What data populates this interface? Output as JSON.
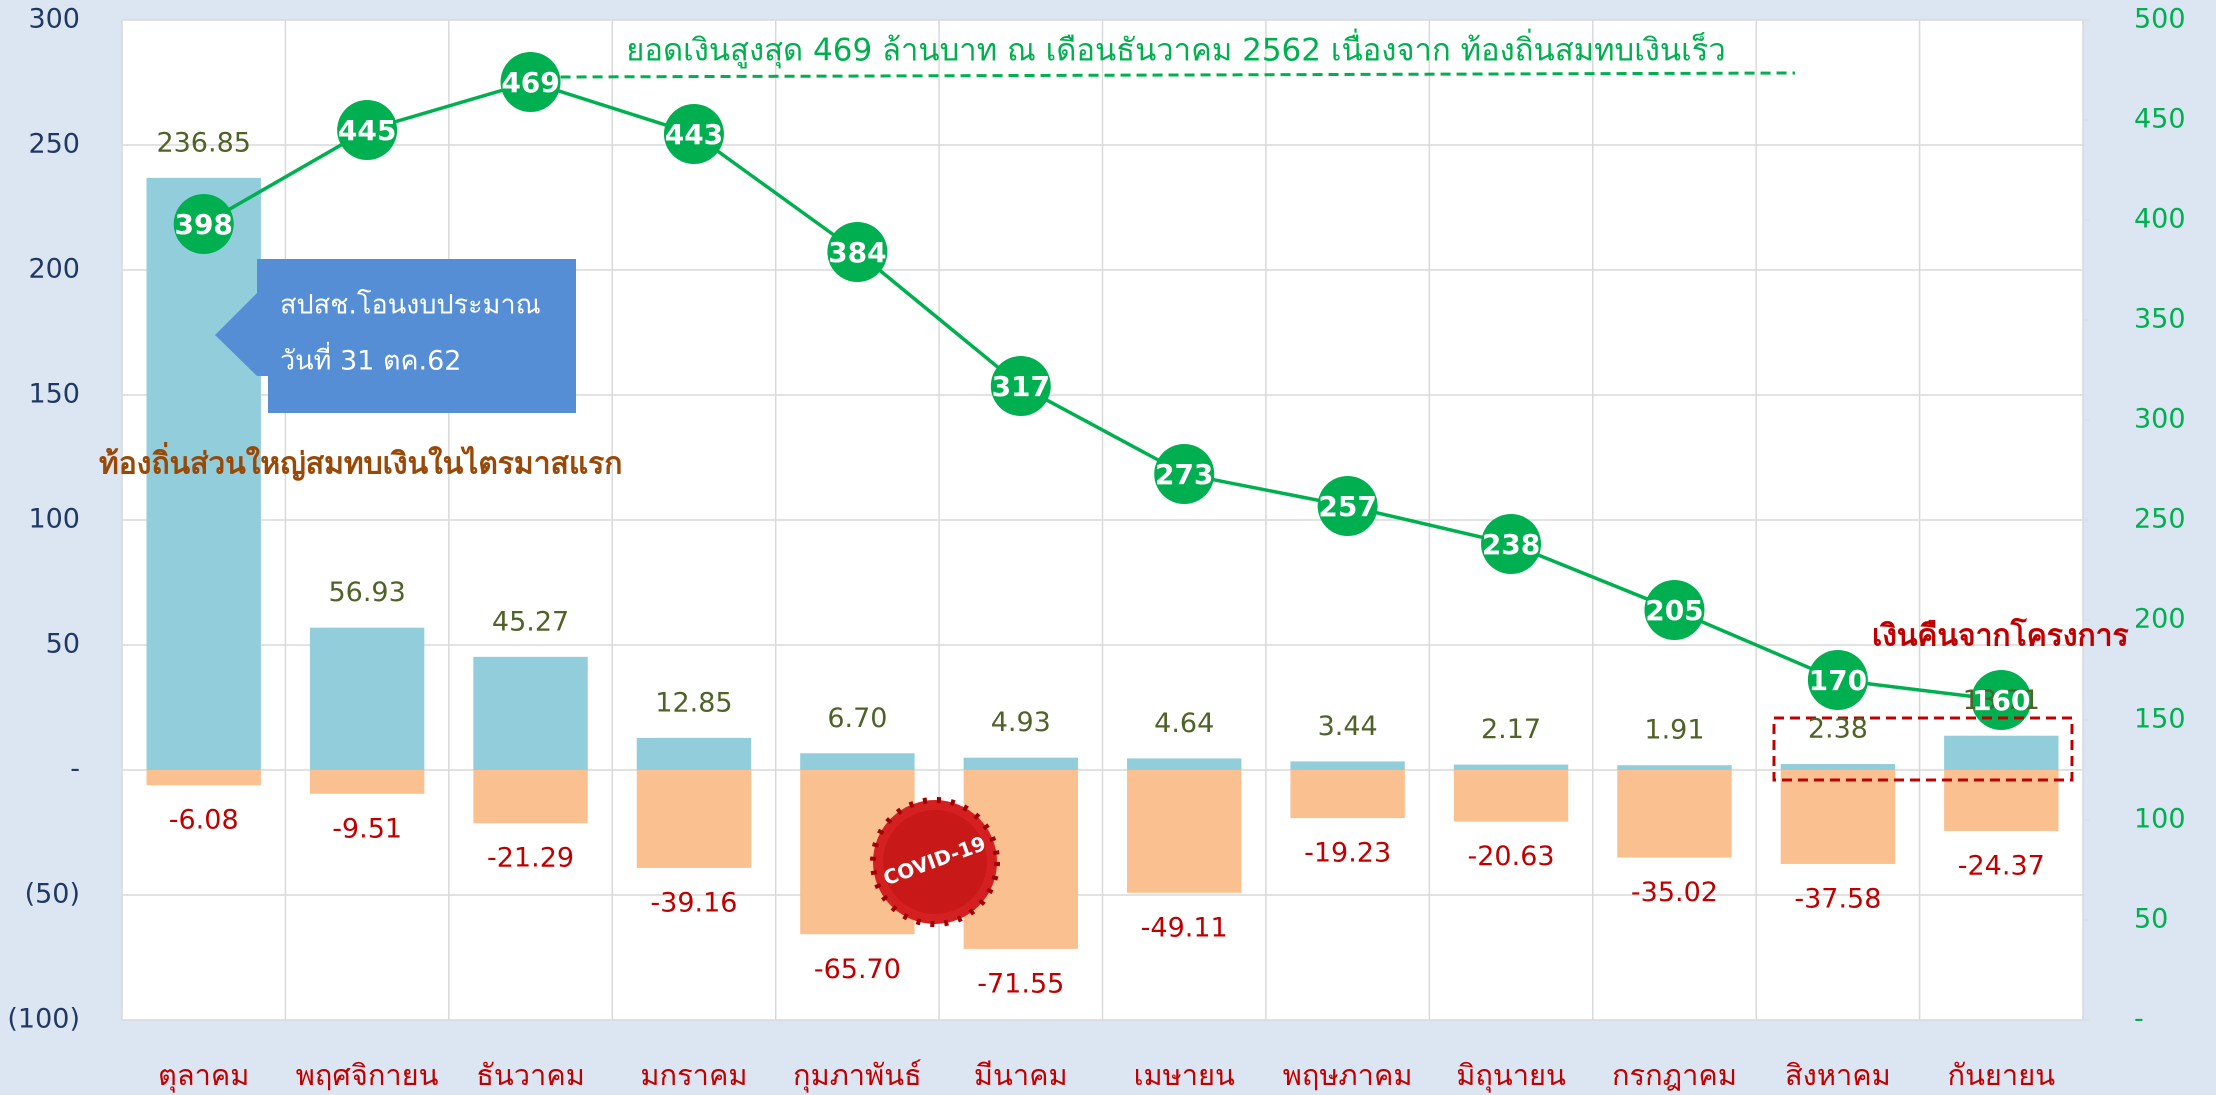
{
  "chart_data": {
    "type": "bar-line",
    "categories": [
      "ตุลาคม",
      "พฤศจิกายน",
      "ธันวาคม",
      "มกราคม",
      "กุมภาพันธ์",
      "มีนาคม",
      "เมษายน",
      "พฤษภาคม",
      "มิถุนายน",
      "กรกฎาคม",
      "สิงหาคม",
      "กันยายน"
    ],
    "series": [
      {
        "type": "bar",
        "color": "#92cddc",
        "label_color": "#4f6228",
        "values": [
          236.85,
          56.93,
          45.27,
          12.85,
          6.7,
          4.93,
          4.64,
          3.44,
          2.17,
          1.91,
          2.38,
          13.71
        ],
        "value_labels": [
          "236.85",
          "56.93",
          "45.27",
          "12.85",
          "6.70",
          "4.93",
          "4.64",
          "3.44",
          "2.17",
          "1.91",
          "2.38",
          "13.71"
        ]
      },
      {
        "type": "bar",
        "color": "#fac090",
        "label_color": "#c00000",
        "values": [
          -6.08,
          -9.51,
          -21.29,
          -39.16,
          -65.7,
          -71.55,
          -49.11,
          -19.23,
          -20.63,
          -35.02,
          -37.58,
          -24.37
        ],
        "value_labels": [
          "-6.08",
          "-9.51",
          "-21.29",
          "-39.16",
          "-65.70",
          "-71.55",
          "-49.11",
          "-19.23",
          "-20.63",
          "-35.02",
          "-37.58",
          "-24.37"
        ]
      },
      {
        "type": "line",
        "axis": "y2",
        "color": "#00b050",
        "values": [
          398,
          445,
          469,
          443,
          384,
          317,
          273,
          257,
          238,
          205,
          170,
          160
        ]
      }
    ],
    "ylim": [
      -100,
      300
    ],
    "yticks": [
      {
        "value": -100,
        "label": "(100)"
      },
      {
        "value": -50,
        "label": "(50)"
      },
      {
        "value": 0,
        "label": "-"
      },
      50,
      100,
      150,
      200,
      250,
      300
    ],
    "y2lim": [
      0,
      500
    ],
    "y2ticks": [
      {
        "value": 0,
        "label": "-"
      },
      50,
      100,
      150,
      200,
      250,
      300,
      350,
      400,
      450,
      500
    ],
    "grid": true,
    "annotations": {
      "peak": "ยอดเงินสูงสุด 469 ล้านบาท ณ เดือนธันวาคม 2562 เนื่องจาก ท้องถิ่นสมทบเงินเร็ว",
      "transfer_line1": "สปสช.โอนงบประมาณ",
      "transfer_line2": "วันที่ 31 ตค.62",
      "first_quarter": "ท้องถิ่นส่วนใหญ่สมทบเงินในไตรมาสแรก",
      "refund": "เงินคืนจากโครงการ",
      "covid": "COVID-19"
    }
  }
}
